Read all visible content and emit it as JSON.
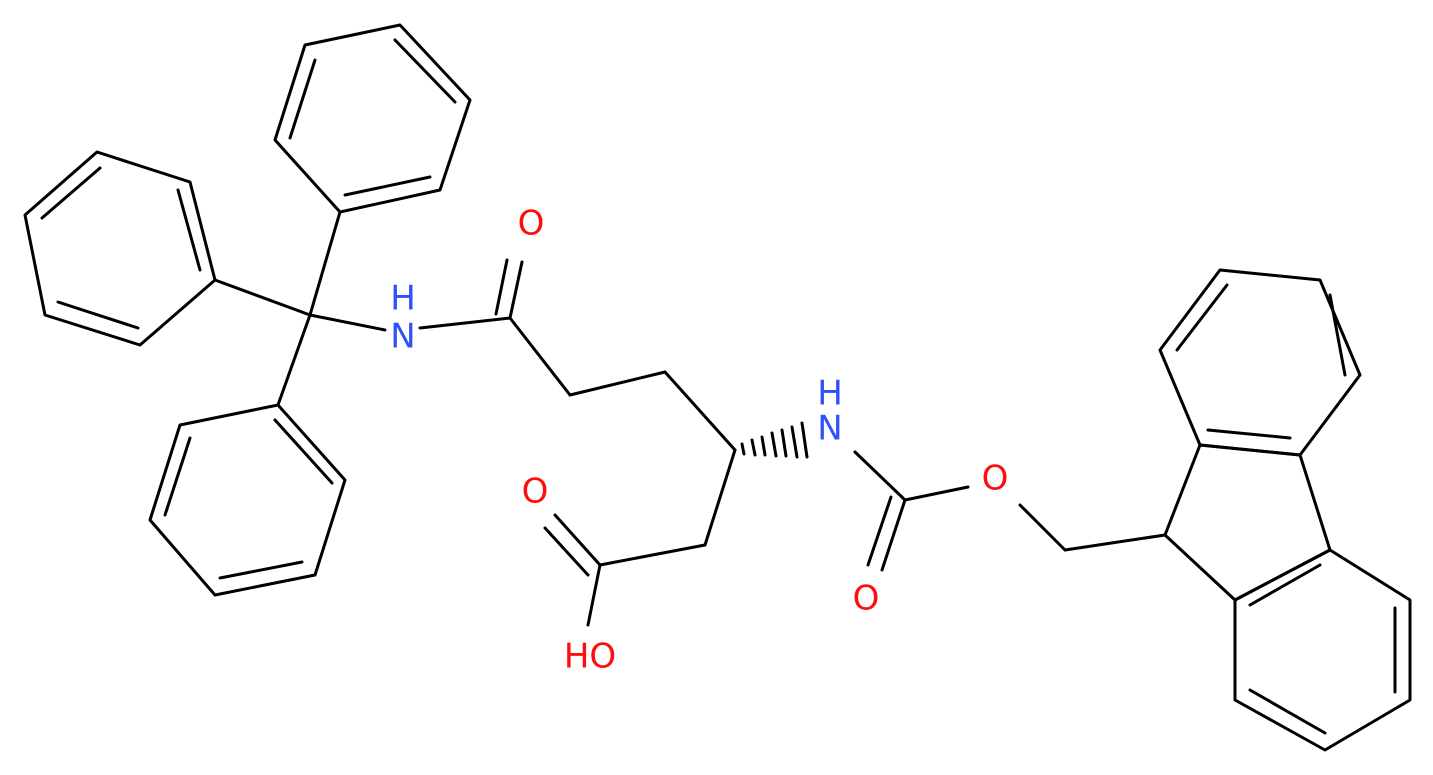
{
  "atoms": [
    "O",
    "H",
    "N",
    "H",
    "N",
    "O",
    "HO",
    "O",
    "O"
  ]
}
